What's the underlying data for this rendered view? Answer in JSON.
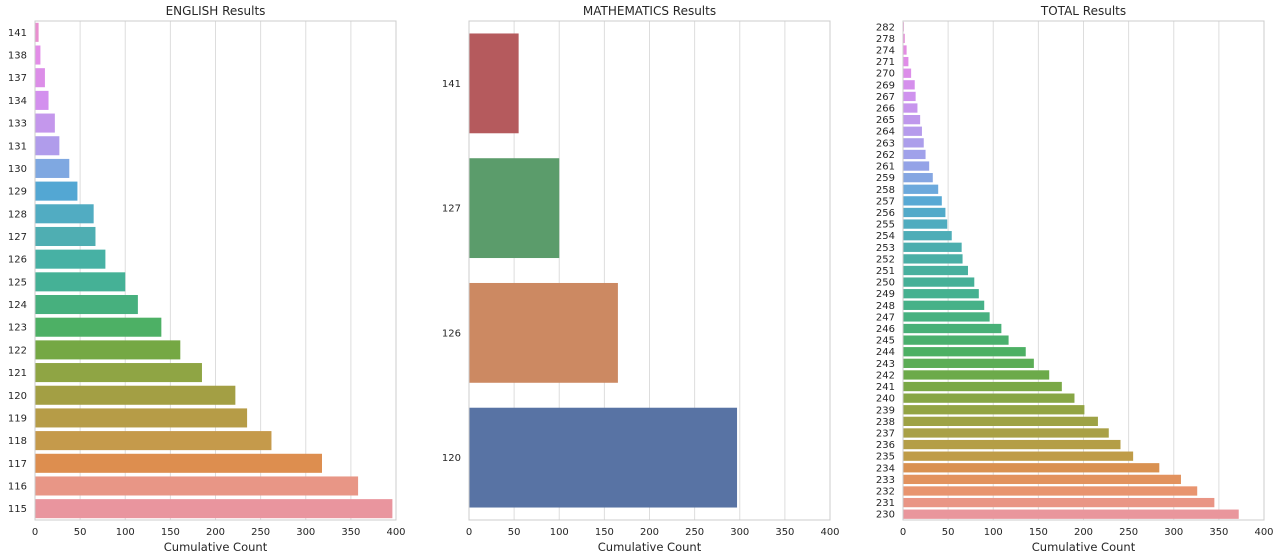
{
  "chart_data": [
    {
      "type": "bar",
      "orientation": "horizontal",
      "title": "ENGLISH Results",
      "xlabel": "Cumulative Count",
      "ylabel": "",
      "xlim": [
        0,
        400
      ],
      "xticks": [
        0,
        50,
        100,
        150,
        200,
        250,
        300,
        350,
        400
      ],
      "grid": "vertical",
      "categories": [
        "141",
        "138",
        "137",
        "134",
        "133",
        "131",
        "130",
        "129",
        "128",
        "127",
        "126",
        "125",
        "124",
        "123",
        "122",
        "121",
        "120",
        "119",
        "118",
        "117",
        "116",
        "115"
      ],
      "values": [
        4,
        6,
        11,
        15,
        22,
        27,
        38,
        47,
        65,
        67,
        78,
        100,
        114,
        140,
        161,
        185,
        222,
        235,
        262,
        318,
        358,
        396
      ],
      "colors": [
        "#e98fcf",
        "#e38de8",
        "#dc8ee8",
        "#d390ee",
        "#c497ec",
        "#b09ceb",
        "#7fa8e1",
        "#53a7d3",
        "#51acc2",
        "#4faeb2",
        "#47b1a4",
        "#45b196",
        "#47b07e",
        "#4db065",
        "#75a844",
        "#8fa544",
        "#a39f44",
        "#b69c47",
        "#c59a4b",
        "#dd8e4f",
        "#e89686",
        "#e9959e"
      ]
    },
    {
      "type": "bar",
      "orientation": "horizontal",
      "title": "MATHEMATICS Results",
      "xlabel": "Cumulative Count",
      "ylabel": "",
      "xlim": [
        0,
        400
      ],
      "xticks": [
        0,
        50,
        100,
        150,
        200,
        250,
        300,
        350,
        400
      ],
      "grid": "vertical",
      "categories": [
        "141",
        "127",
        "126",
        "120"
      ],
      "values": [
        55,
        100,
        165,
        297
      ],
      "colors": [
        "#b55a5d",
        "#5b9c6b",
        "#cc8962",
        "#5873a4"
      ]
    },
    {
      "type": "bar",
      "orientation": "horizontal",
      "title": "TOTAL Results",
      "xlabel": "Cumulative Count",
      "ylabel": "",
      "xlim": [
        0,
        400
      ],
      "xticks": [
        0,
        50,
        100,
        150,
        200,
        250,
        300,
        350,
        400
      ],
      "grid": "vertical",
      "categories": [
        "282",
        "278",
        "274",
        "271",
        "270",
        "269",
        "267",
        "266",
        "265",
        "264",
        "263",
        "262",
        "261",
        "259",
        "258",
        "257",
        "256",
        "255",
        "254",
        "253",
        "252",
        "251",
        "250",
        "249",
        "248",
        "247",
        "246",
        "245",
        "244",
        "243",
        "242",
        "241",
        "240",
        "239",
        "238",
        "237",
        "236",
        "235",
        "234",
        "233",
        "232",
        "231",
        "230"
      ],
      "values": [
        1,
        2,
        4,
        6,
        9,
        13,
        14,
        16,
        19,
        21,
        23,
        25,
        29,
        33,
        39,
        43,
        47,
        49,
        54,
        65,
        66,
        72,
        79,
        84,
        90,
        96,
        109,
        117,
        136,
        145,
        162,
        176,
        190,
        201,
        216,
        228,
        241,
        255,
        284,
        308,
        326,
        345,
        372
      ],
      "colors": [
        "#e98fcf",
        "#e68ed9",
        "#e38de2",
        "#e08de8",
        "#dc8ee9",
        "#d58fec",
        "#cf92ee",
        "#c795ed",
        "#bf98ec",
        "#b69bec",
        "#ac9eeb",
        "#a0a1ea",
        "#94a3e7",
        "#85a6e2",
        "#6ca9dc",
        "#58a9d4",
        "#52aac9",
        "#50acbf",
        "#4eadb7",
        "#4caeae",
        "#4aafa6",
        "#48b09e",
        "#46b097",
        "#45b190",
        "#46b188",
        "#47b180",
        "#48b077",
        "#4ab06d",
        "#4db064",
        "#5cad56",
        "#6caa4a",
        "#7aa846",
        "#87a645",
        "#93a444",
        "#9ea245",
        "#a9a046",
        "#b49e47",
        "#bf9c48",
        "#d99151",
        "#e2925e",
        "#e8946f",
        "#e99585",
        "#e9969c"
      ]
    }
  ]
}
